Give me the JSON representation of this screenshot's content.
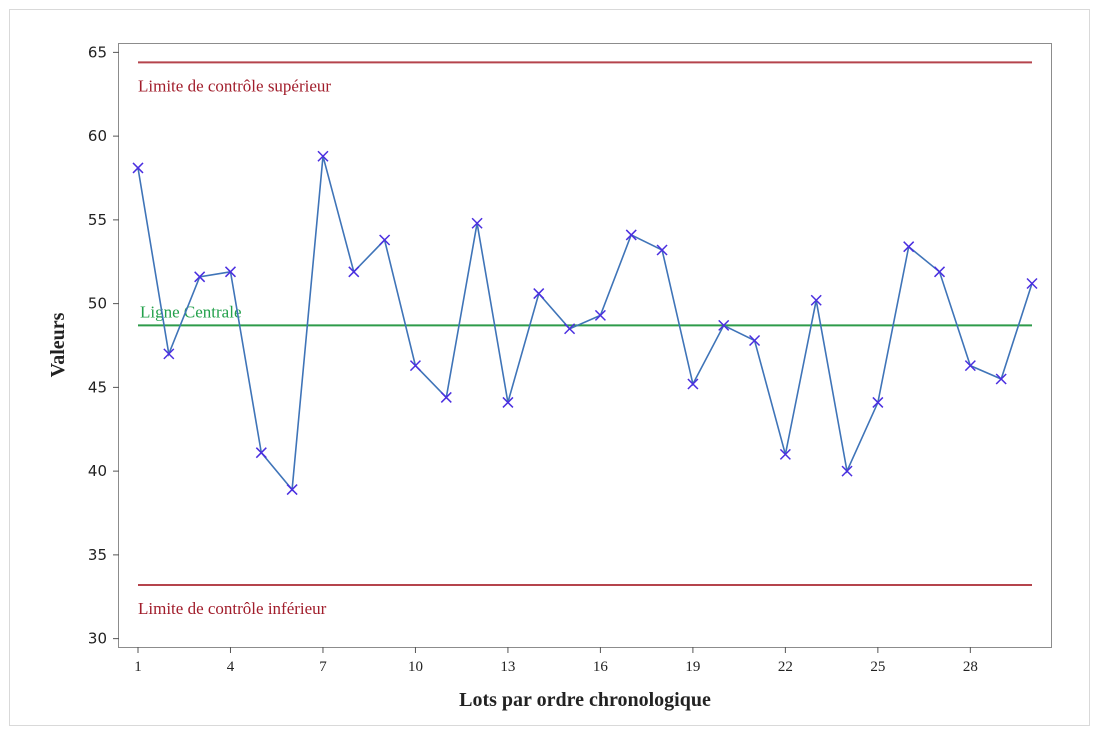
{
  "chart_data": {
    "type": "line",
    "xlabel": "Lots par ordre chronologique",
    "ylabel": "Valeurs",
    "xlim": [
      0.5,
      30.5
    ],
    "ylim": [
      29.5,
      65.5
    ],
    "x_ticks": [
      1,
      4,
      7,
      10,
      13,
      16,
      19,
      22,
      25,
      28
    ],
    "y_ticks": [
      30,
      35,
      40,
      45,
      50,
      55,
      60,
      65
    ],
    "grid": false,
    "series": [
      {
        "line_color": "#3f74b8",
        "marker": "x",
        "marker_color": "#4a2ee0",
        "x": [
          1,
          2,
          3,
          4,
          5,
          6,
          7,
          8,
          9,
          10,
          11,
          12,
          13,
          14,
          15,
          16,
          17,
          18,
          19,
          20,
          21,
          22,
          23,
          24,
          25,
          26,
          27,
          28,
          29,
          30
        ],
        "y": [
          58.1,
          47.0,
          51.6,
          51.9,
          41.1,
          38.9,
          58.8,
          51.9,
          53.8,
          46.3,
          44.4,
          54.8,
          44.1,
          50.6,
          48.5,
          49.3,
          54.1,
          53.2,
          45.2,
          48.7,
          47.8,
          41.0,
          50.2,
          40.0,
          44.1,
          53.4,
          51.9,
          46.3,
          45.5,
          51.2
        ]
      }
    ],
    "reference_lines": [
      {
        "id": "ucl",
        "label": "Limite de contrôle supérieur",
        "value": 64.4,
        "color": "#b5444c",
        "label_color": "#a11d2b"
      },
      {
        "id": "center",
        "label": "Ligne Centrale",
        "value": 48.7,
        "color": "#2e9b4a",
        "label_color": "#22a04a"
      },
      {
        "id": "lcl",
        "label": "Limite de contrôle inférieur",
        "value": 33.2,
        "color": "#b5444c",
        "label_color": "#a11d2b"
      }
    ]
  }
}
